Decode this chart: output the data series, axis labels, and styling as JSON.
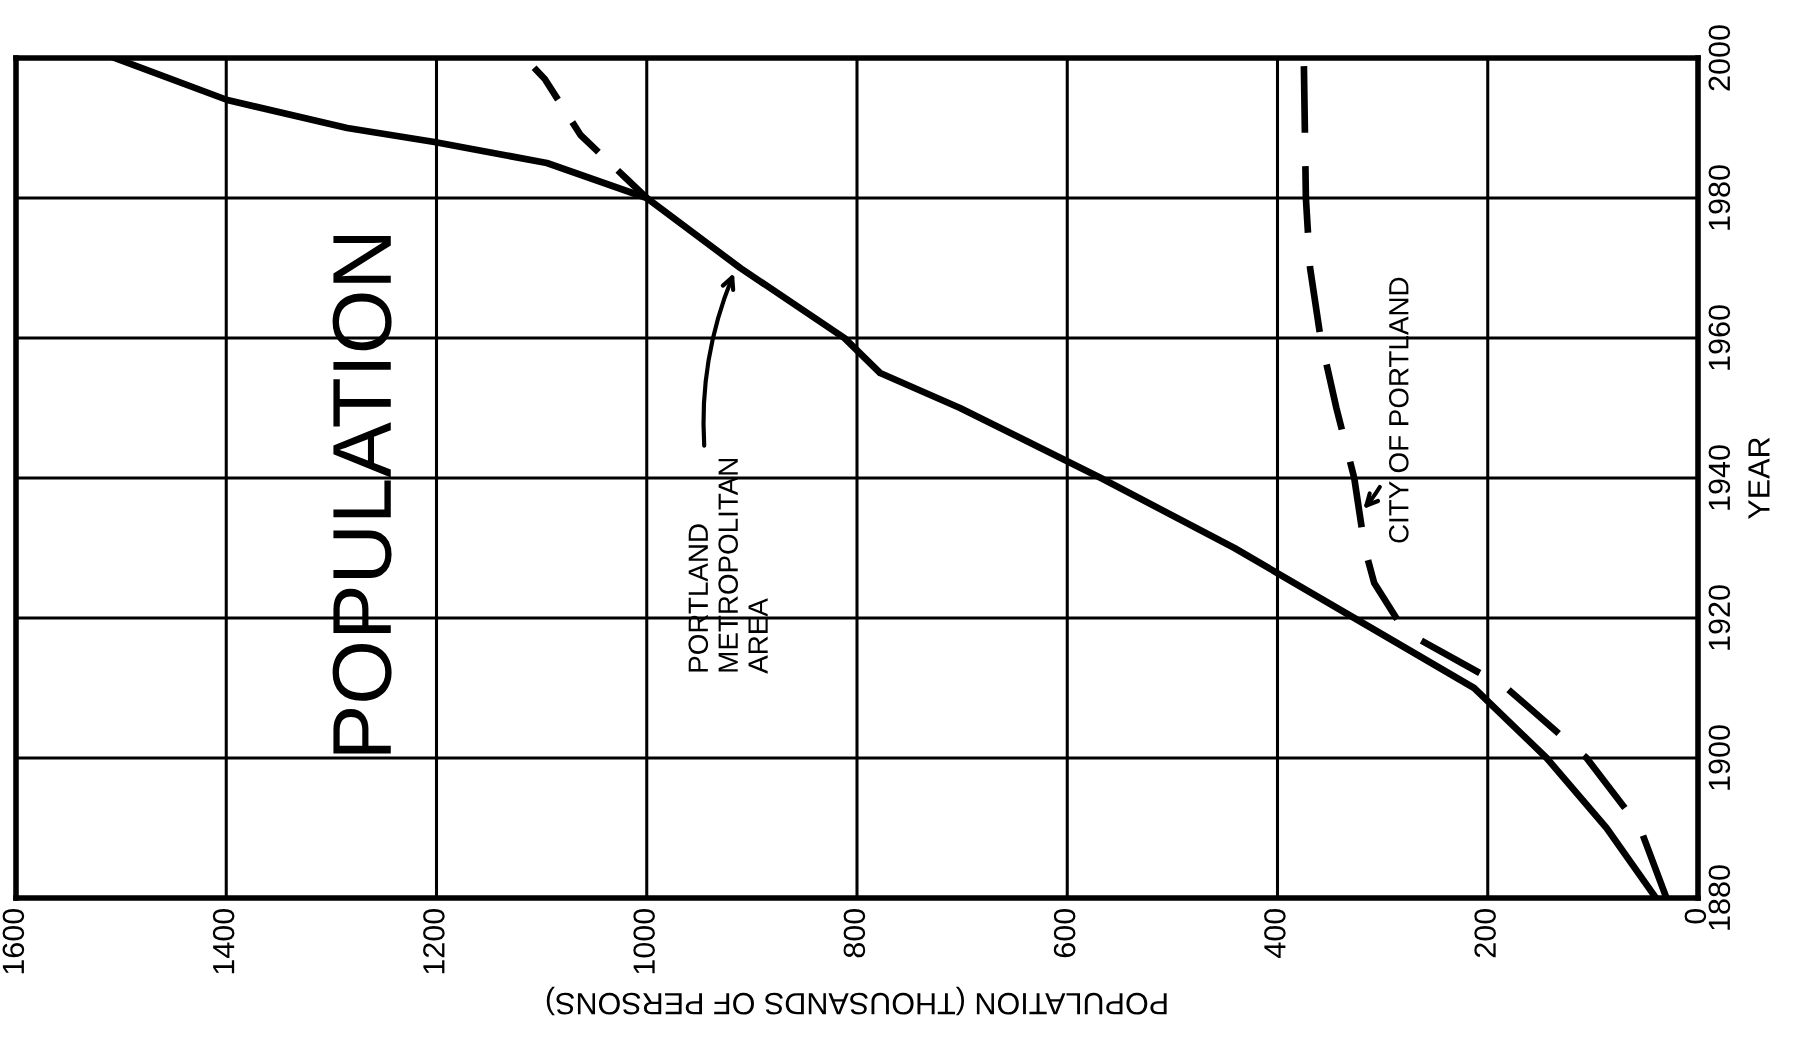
{
  "chart_data": {
    "type": "line",
    "title": "POPULATION",
    "xlabel": "POPULATION (THOUSANDS OF PERSONS)",
    "ylabel": "YEAR",
    "xlim": [
      1600,
      0
    ],
    "xticks": [
      1600,
      1400,
      1200,
      1000,
      800,
      600,
      400,
      200,
      0
    ],
    "ylim": [
      1880,
      2000
    ],
    "yticks": [
      1880,
      1900,
      1920,
      1940,
      1960,
      1980,
      2000
    ],
    "grid": true,
    "legend": false,
    "series": [
      {
        "color": "#000000",
        "line_style": "solid",
        "x": [
          40,
          87,
          144,
          213,
          327,
          441,
          568,
          702,
          778,
          812,
          911,
          1000,
          1095,
          1202,
          1285,
          1399,
          1506
        ],
        "values": [
          1880,
          1890,
          1900,
          1910,
          1920,
          1930,
          1940,
          1950,
          1955,
          1960,
          1970,
          1980,
          1985,
          1988,
          1990,
          1994,
          2000
        ]
      },
      {
        "color": "#000000",
        "line_style": "dashed",
        "x": [
          1000,
          1021,
          1063,
          1097,
          1116
        ],
        "values": [
          1980,
          1983,
          1989,
          1997,
          2000
        ]
      },
      {
        "color": "#000000",
        "line_style": "dashed",
        "x": [
          30,
          55,
          106,
          182,
          278,
          287,
          308,
          317,
          327,
          344,
          359,
          369,
          373,
          375
        ],
        "values": [
          1880,
          1890,
          1900,
          1910,
          1918,
          1920,
          1925,
          1930,
          1940,
          1950,
          1960,
          1970,
          1980,
          2000
        ]
      }
    ],
    "annotations": [
      {
        "text": "PORTLAND\nMETROPOLITAN\nAREA",
        "x": 915,
        "y": 1970
      },
      {
        "text": "CITY OF PORTLAND",
        "x": 322,
        "y": 1935
      }
    ]
  }
}
